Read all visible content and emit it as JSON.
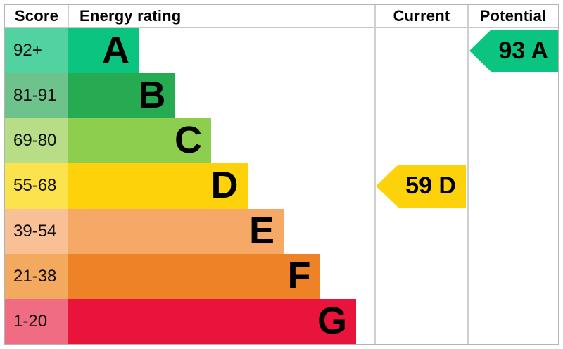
{
  "header": {
    "score": "Score",
    "energy_rating": "Energy rating",
    "current": "Current",
    "potential": "Potential"
  },
  "chart_data": {
    "type": "bar",
    "title": "Energy rating",
    "legend_position": "none",
    "grid": false,
    "bands": [
      {
        "letter": "A",
        "score_range": "92+",
        "bar_color": "#0bc47f",
        "score_cell_color": "#52d2a0"
      },
      {
        "letter": "B",
        "score_range": "81-91",
        "bar_color": "#27ab52",
        "score_cell_color": "#6ec28c"
      },
      {
        "letter": "C",
        "score_range": "69-80",
        "bar_color": "#8ece4e",
        "score_cell_color": "#b7dd86"
      },
      {
        "letter": "D",
        "score_range": "55-68",
        "bar_color": "#fdd20b",
        "score_cell_color": "#fce24d"
      },
      {
        "letter": "E",
        "score_range": "39-54",
        "bar_color": "#f6a866",
        "score_cell_color": "#f8c094"
      },
      {
        "letter": "F",
        "score_range": "21-38",
        "bar_color": "#ee8226",
        "score_cell_color": "#f3a95e"
      },
      {
        "letter": "G",
        "score_range": "1-20",
        "bar_color": "#e8143c",
        "score_cell_color": "#f06c82"
      }
    ],
    "current": {
      "value": 59,
      "band": "D",
      "label": "59 D"
    },
    "potential": {
      "value": 93,
      "band": "A",
      "label": "93 A"
    }
  }
}
